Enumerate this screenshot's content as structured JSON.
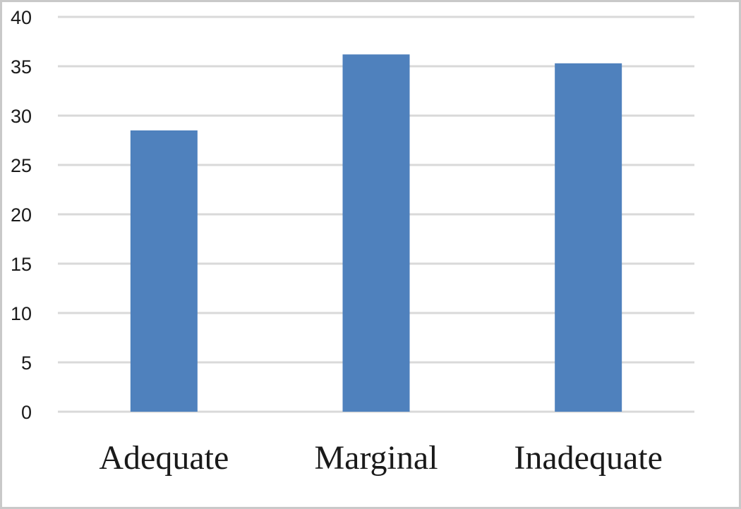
{
  "chart_data": {
    "type": "bar",
    "categories": [
      "Adequate",
      "Marginal",
      "Inadequate"
    ],
    "values": [
      28.5,
      36.2,
      35.3
    ],
    "ylim": [
      0,
      40
    ],
    "yticks": [
      0,
      5,
      10,
      15,
      20,
      25,
      30,
      35,
      40
    ],
    "grid": true,
    "legend": "none",
    "colors": {
      "bar": "#4f81bd",
      "grid": "#d9d9d9",
      "text": "#1a1a1a",
      "frame": "#c9c9c9"
    }
  }
}
